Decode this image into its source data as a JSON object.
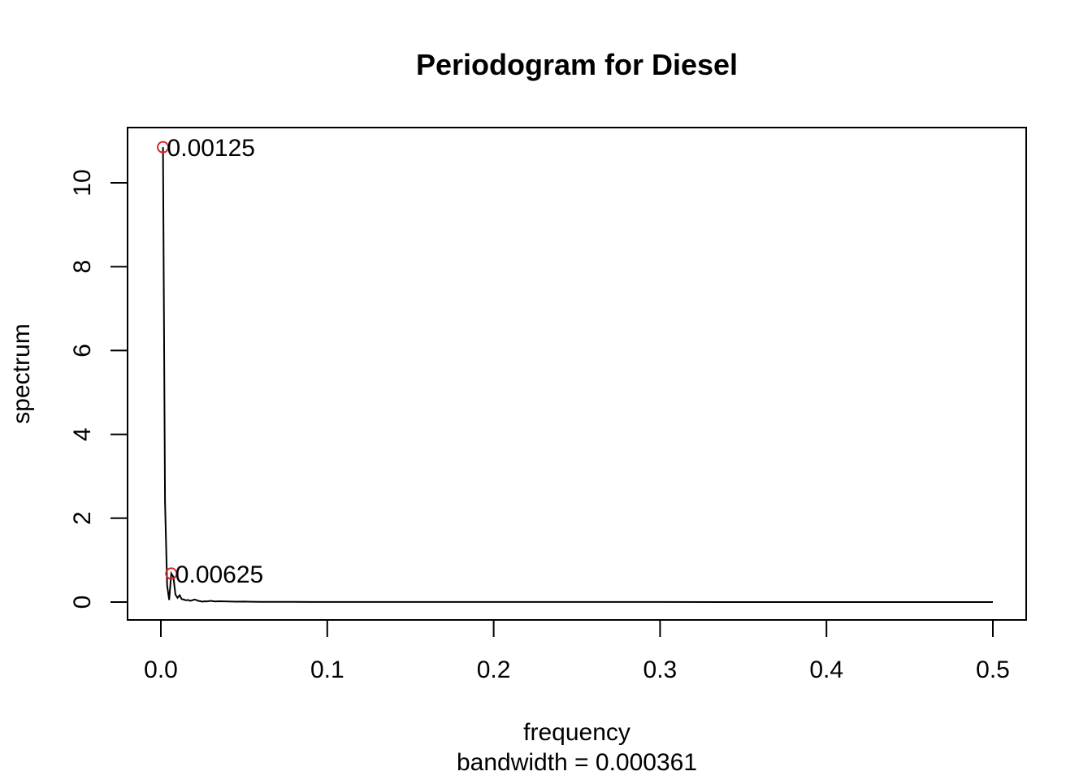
{
  "chart_data": {
    "type": "line",
    "title": "Periodogram for Diesel",
    "xlabel": "frequency",
    "xlabel_sub": "bandwidth = 0.000361",
    "ylabel": "spectrum",
    "xlim": [
      0,
      0.5
    ],
    "ylim": [
      0,
      10.85
    ],
    "x_ticks": [
      "0.0",
      "0.1",
      "0.2",
      "0.3",
      "0.4",
      "0.5"
    ],
    "y_ticks": [
      "0",
      "2",
      "4",
      "6",
      "8",
      "10"
    ],
    "grid": false,
    "line_color": "#000000",
    "marker_color": "#d62728",
    "series": [
      {
        "x": [
          0.00125,
          0.0025,
          0.00375,
          0.005,
          0.00625,
          0.0075,
          0.00875,
          0.01,
          0.0113,
          0.0125,
          0.0138,
          0.015,
          0.0163,
          0.0175,
          0.0188,
          0.02,
          0.0213,
          0.0225,
          0.0238,
          0.025,
          0.0263,
          0.0275,
          0.03,
          0.0325,
          0.035,
          0.04,
          0.045,
          0.05,
          0.055,
          0.06,
          0.065,
          0.08,
          0.1,
          0.15,
          0.2,
          0.25,
          0.3,
          0.35,
          0.4,
          0.45,
          0.5
        ],
        "y": [
          10.85,
          2.4,
          0.4,
          0.05,
          0.68,
          0.6,
          0.18,
          0.1,
          0.16,
          0.07,
          0.06,
          0.04,
          0.05,
          0.03,
          0.04,
          0.06,
          0.05,
          0.03,
          0.02,
          0.01,
          0.02,
          0.015,
          0.03,
          0.015,
          0.02,
          0.015,
          0.01,
          0.012,
          0.008,
          0.006,
          0.004,
          0.003,
          0.002,
          0.001,
          0.001,
          0.001,
          0.001,
          0.0005,
          0.0005,
          0.0005,
          0.0005
        ]
      }
    ],
    "annotations": [
      {
        "x": 0.00125,
        "y": 10.85,
        "label": "0.00125"
      },
      {
        "x": 0.00625,
        "y": 0.68,
        "label": "0.00625"
      }
    ]
  }
}
